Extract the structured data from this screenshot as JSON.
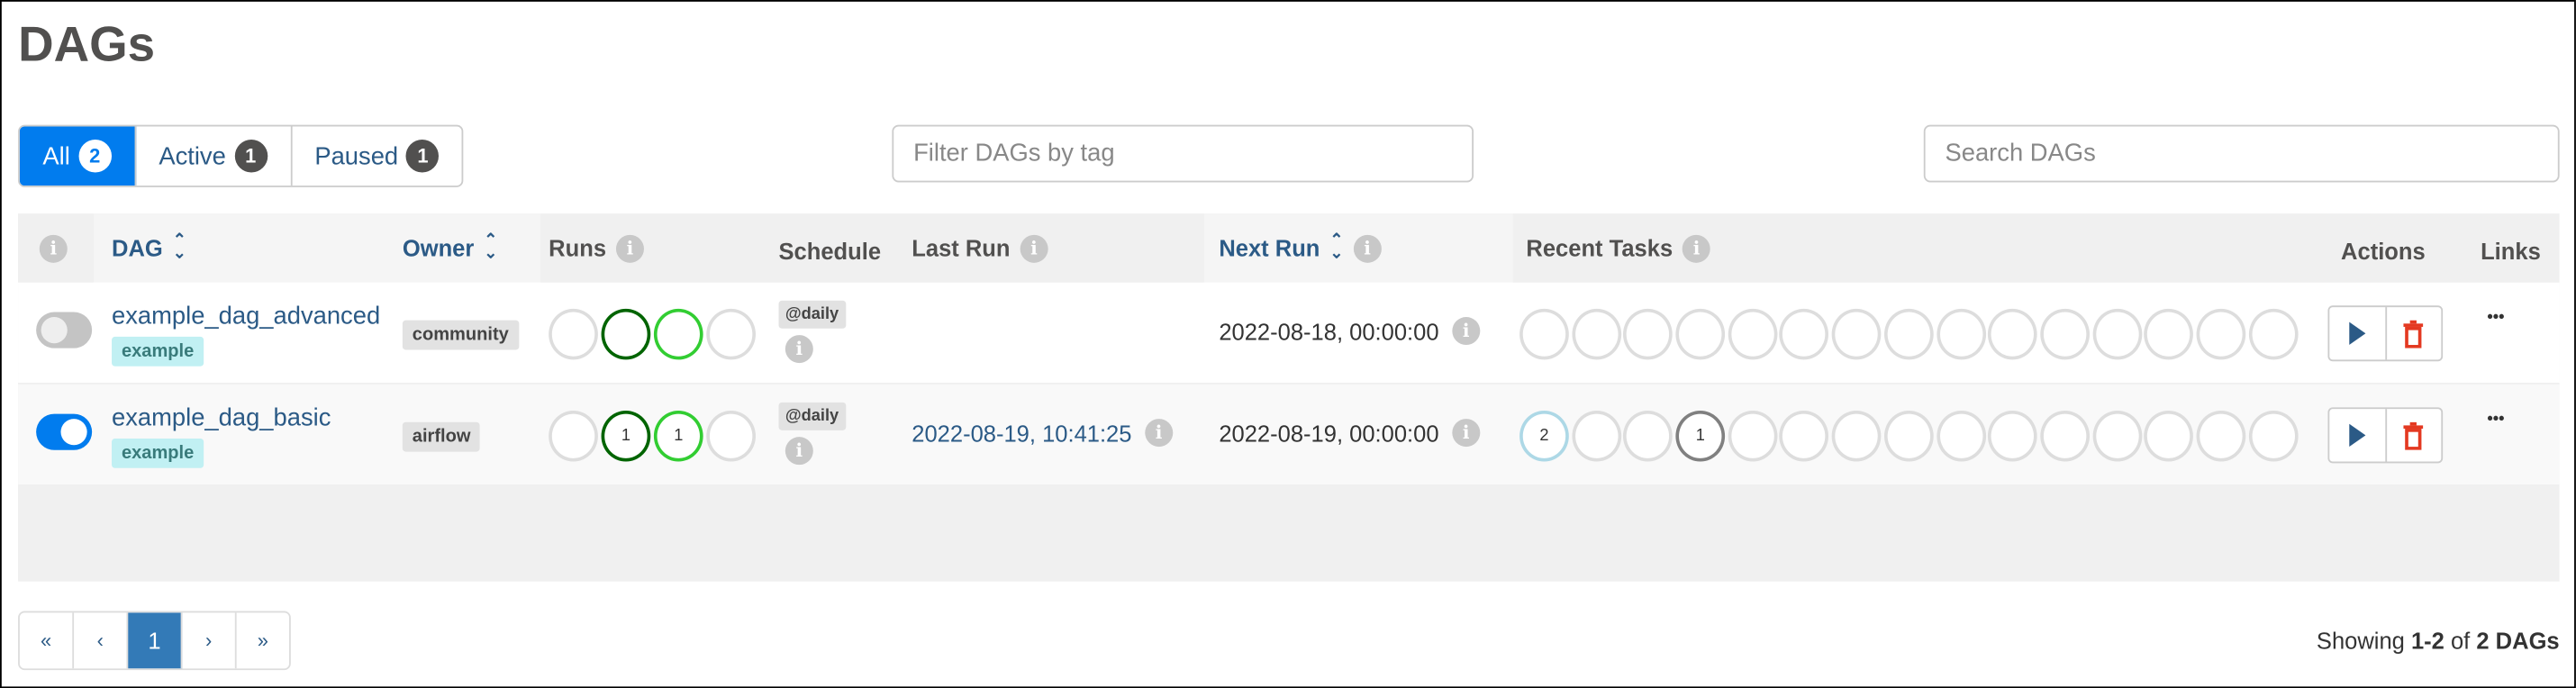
{
  "title": "DAGs",
  "tabs": [
    {
      "label": "All",
      "count": "2"
    },
    {
      "label": "Active",
      "count": "1"
    },
    {
      "label": "Paused",
      "count": "1"
    }
  ],
  "filter_tags": {
    "placeholder": "Filter DAGs by tag"
  },
  "search": {
    "placeholder": "Search DAGs"
  },
  "columns": {
    "dag": "DAG",
    "owner": "Owner",
    "runs": "Runs",
    "schedule": "Schedule",
    "last_run": "Last Run",
    "next_run": "Next Run",
    "recent_tasks": "Recent Tasks",
    "actions": "Actions",
    "links": "Links"
  },
  "rows": [
    {
      "dag_id": "example_dag_advanced",
      "tag": "example",
      "owner": "community",
      "active": false,
      "runs": [
        "",
        "",
        "",
        ""
      ],
      "schedule": "@daily",
      "last_run": "",
      "next_run": "2022-08-18, 00:00:00",
      "recent_tasks": [
        "",
        "",
        "",
        "",
        "",
        "",
        "",
        "",
        "",
        "",
        "",
        "",
        "",
        "",
        ""
      ]
    },
    {
      "dag_id": "example_dag_basic",
      "tag": "example",
      "owner": "airflow",
      "active": true,
      "runs": [
        "",
        "1",
        "1",
        ""
      ],
      "schedule": "@daily",
      "last_run": "2022-08-19, 10:41:25",
      "next_run": "2022-08-19, 00:00:00",
      "recent_tasks": [
        "2",
        "",
        "",
        "1",
        "",
        "",
        "",
        "",
        "",
        "",
        "",
        "",
        "",
        "",
        ""
      ]
    }
  ],
  "run_colors": [
    "#dddddd",
    "#006400",
    "#32cd32",
    "#dddddd"
  ],
  "task_colors": {
    "0": "#add8e6",
    "3": "#808080"
  },
  "accent": "#017cee",
  "pagination": {
    "items": [
      "«",
      "‹",
      "1",
      "›",
      "»"
    ],
    "active": "1"
  },
  "showing": {
    "prefix": "Showing ",
    "range": "1-2",
    "mid": " of ",
    "total": "2 DAGs"
  }
}
